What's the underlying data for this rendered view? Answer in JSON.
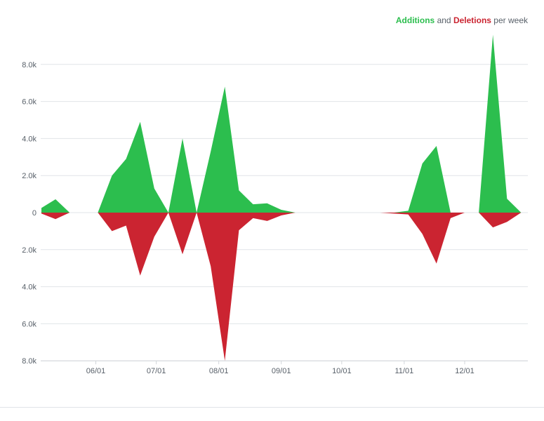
{
  "legend": {
    "additions_label": "Additions",
    "and_label": "and",
    "deletions_label": "Deletions",
    "suffix_label": "per week"
  },
  "colors": {
    "additions": "#2cbe4e",
    "deletions": "#cb2431",
    "grid": "#e1e4e8",
    "text": "#586069"
  },
  "chart_data": {
    "type": "area",
    "title": "Additions and Deletions per week",
    "xlabel": "",
    "ylabel": "",
    "x_unit": "week",
    "x_start": "2019-05-05",
    "week_count": 35,
    "x_tick_labels": [
      "06/01",
      "07/01",
      "08/01",
      "09/01",
      "10/01",
      "11/01",
      "12/01"
    ],
    "x_tick_dates": [
      "2019-06-01",
      "2019-07-01",
      "2019-08-01",
      "2019-09-01",
      "2019-10-01",
      "2019-11-01",
      "2019-12-01"
    ],
    "y_tick_labels": [
      "8.0k",
      "6.0k",
      "4.0k",
      "2.0k",
      "0",
      "2.0k",
      "4.0k",
      "6.0k",
      "8.0k"
    ],
    "y_tick_values": [
      8000,
      6000,
      4000,
      2000,
      0,
      -2000,
      -4000,
      -6000,
      -8000
    ],
    "ylim": [
      -8000,
      10000
    ],
    "grid": true,
    "legend_position": "top-right",
    "series": [
      {
        "name": "Additions",
        "values": [
          250,
          720,
          0,
          0,
          0,
          2000,
          2900,
          4900,
          1300,
          0,
          4000,
          0,
          3300,
          6800,
          1200,
          450,
          500,
          150,
          0,
          0,
          0,
          0,
          0,
          0,
          0,
          0,
          100,
          2650,
          3600,
          0,
          0,
          0,
          9600,
          750,
          0
        ]
      },
      {
        "name": "Deletions",
        "values": [
          -50,
          -350,
          0,
          0,
          0,
          -1000,
          -700,
          -3400,
          -1300,
          0,
          -2250,
          0,
          -2900,
          -8000,
          -950,
          -300,
          -450,
          -150,
          0,
          0,
          0,
          0,
          0,
          0,
          0,
          -50,
          -100,
          -1150,
          -2750,
          -300,
          0,
          0,
          -800,
          -500,
          0
        ]
      }
    ]
  }
}
